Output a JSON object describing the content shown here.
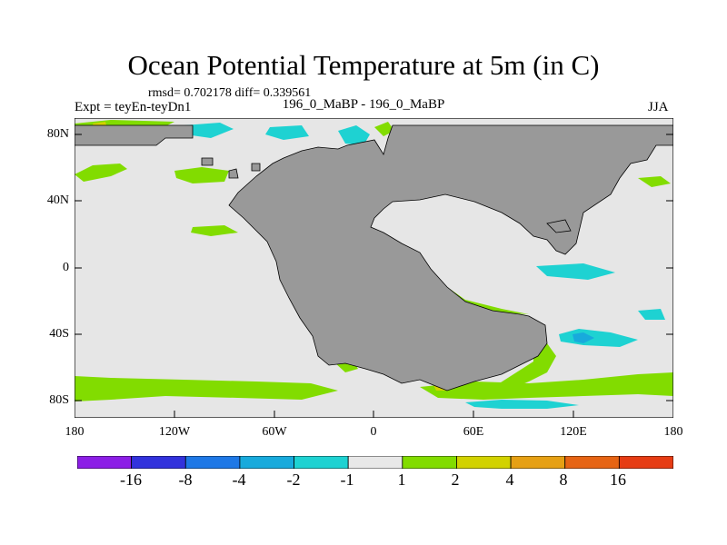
{
  "title": "Ocean Potential Temperature at 5m (in C)",
  "stats": "rmsd= 0.702178 diff= 0.339561",
  "left_label": "Expt = teyEn-teyDn1",
  "center_label": "196_0_MaBP - 196_0_MaBP",
  "right_label": "JJA",
  "x_ticks": [
    "180",
    "120W",
    "60W",
    "0",
    "60E",
    "120E",
    "180"
  ],
  "y_ticks": [
    "80N",
    "40N",
    "0",
    "40S",
    "80S"
  ],
  "colorbar": {
    "labels": [
      "-16",
      "-8",
      "-4",
      "-2",
      "-1",
      "1",
      "2",
      "4",
      "8",
      "16"
    ],
    "colors": [
      "#8c1ee6",
      "#3232dc",
      "#1e78e6",
      "#18aadc",
      "#1ed2d2",
      "#e8e8e8",
      "#82dc00",
      "#d2d200",
      "#e6a014",
      "#e66414",
      "#e63c14"
    ]
  },
  "land_color": "#999999",
  "ocean_color": "#e6e6e6"
}
